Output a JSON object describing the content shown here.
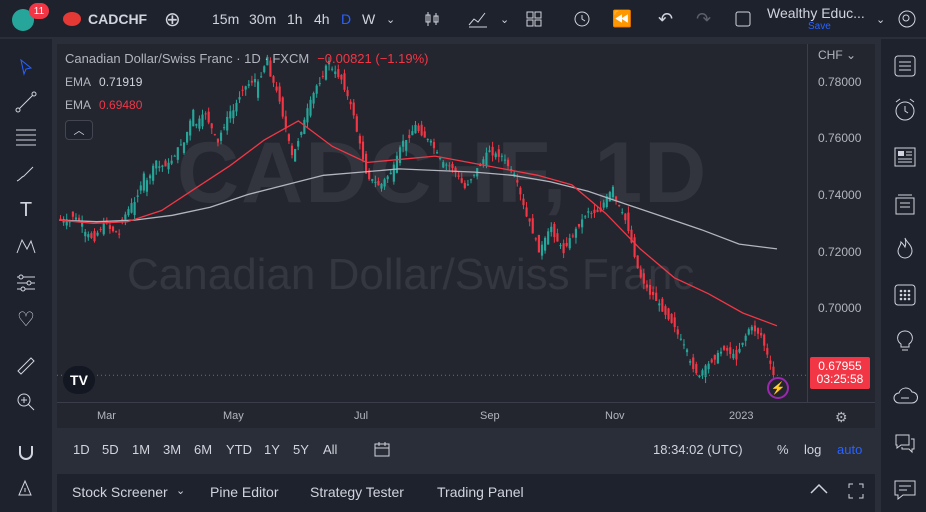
{
  "toolbar": {
    "notification_count": "11",
    "symbol": "CADCHF",
    "intervals": [
      "15m",
      "30m",
      "1h",
      "4h",
      "D",
      "W"
    ],
    "active_interval": "D",
    "account_name": "Wealthy Educ...",
    "save_label": "Save"
  },
  "chart": {
    "header_title": "Canadian Dollar/Swiss Franc · 1D · FXCM",
    "change": "−0.00821 (−1.19%)",
    "ema1_label": "EMA",
    "ema1_value": "0.71919",
    "ema2_label": "EMA",
    "ema2_value": "0.69480",
    "watermark_symbol": "CADCHF, 1D",
    "watermark_name": "Canadian Dollar/Swiss Franc",
    "currency": "CHF",
    "last_price": "0.67955",
    "countdown": "03:25:58",
    "colors": {
      "up": "#26a69a",
      "down": "#f23645",
      "ema1": "#b2b5be",
      "ema2": "#f23645"
    }
  },
  "chart_data": {
    "type": "candlestick",
    "y_ticks": [
      "0.78000",
      "0.76000",
      "0.74000",
      "0.72000",
      "0.70000"
    ],
    "x_ticks": [
      "Mar",
      "May",
      "Jul",
      "Sep",
      "Nov",
      "2023"
    ],
    "ylim": [
      0.6712,
      0.783
    ],
    "grid": false,
    "close_series": [
      [
        0.7285,
        0.7275
      ],
      [
        0.73,
        0.727
      ],
      [
        0.7245,
        0.722
      ],
      [
        0.723,
        0.7275
      ],
      [
        0.726,
        0.7235
      ],
      [
        0.7265,
        0.733
      ],
      [
        0.7305,
        0.742
      ],
      [
        0.738,
        0.7465
      ],
      [
        0.7445,
        0.7455
      ],
      [
        0.745,
        0.752
      ],
      [
        0.749,
        0.762
      ],
      [
        0.757,
        0.7615
      ],
      [
        0.761,
        0.752
      ],
      [
        0.753,
        0.762
      ],
      [
        0.76,
        0.769
      ],
      [
        0.769,
        0.772
      ],
      [
        0.768,
        0.779
      ],
      [
        0.776,
        0.7655
      ],
      [
        0.765,
        0.748
      ],
      [
        0.747,
        0.759
      ],
      [
        0.76,
        0.77
      ],
      [
        0.769,
        0.778
      ],
      [
        0.776,
        0.772
      ],
      [
        0.772,
        0.761
      ],
      [
        0.76,
        0.743
      ],
      [
        0.742,
        0.739
      ],
      [
        0.738,
        0.743
      ],
      [
        0.742,
        0.753
      ],
      [
        0.751,
        0.7575
      ],
      [
        0.757,
        0.753
      ],
      [
        0.754,
        0.747
      ],
      [
        0.746,
        0.7445
      ],
      [
        0.7445,
        0.738
      ],
      [
        0.738,
        0.744
      ],
      [
        0.744,
        0.75
      ],
      [
        0.749,
        0.748
      ],
      [
        0.748,
        0.742
      ],
      [
        0.7425,
        0.729
      ],
      [
        0.73,
        0.7185
      ],
      [
        0.718,
        0.726
      ],
      [
        0.725,
        0.718
      ],
      [
        0.719,
        0.725
      ],
      [
        0.725,
        0.731
      ],
      [
        0.73,
        0.731
      ],
      [
        0.732,
        0.738
      ],
      [
        0.736,
        0.728
      ],
      [
        0.729,
        0.713
      ],
      [
        0.712,
        0.705
      ],
      [
        0.706,
        0.7
      ],
      [
        0.7,
        0.695
      ],
      [
        0.694,
        0.687
      ],
      [
        0.685,
        0.679
      ],
      [
        0.68,
        0.684
      ],
      [
        0.684,
        0.688
      ],
      [
        0.688,
        0.685
      ],
      [
        0.686,
        0.694
      ],
      [
        0.695,
        0.692
      ],
      [
        0.692,
        0.6795
      ]
    ],
    "ema_long": [
      0.728,
      0.7275,
      0.728,
      0.7295,
      0.732,
      0.736,
      0.739,
      0.742,
      0.743,
      0.744,
      0.7435,
      0.743,
      0.742,
      0.74,
      0.737,
      0.733,
      0.729,
      0.725,
      0.7205,
      0.719
    ],
    "ema_short": [
      0.728,
      0.727,
      0.7275,
      0.731,
      0.738,
      0.745,
      0.753,
      0.759,
      0.751,
      0.746,
      0.747,
      0.748,
      0.746,
      0.744,
      0.742,
      0.739,
      0.73,
      0.719,
      0.71,
      0.705,
      0.699,
      0.695
    ]
  },
  "ranges": [
    "1D",
    "5D",
    "1M",
    "3M",
    "6M",
    "YTD",
    "1Y",
    "5Y",
    "All"
  ],
  "clock": "18:34:02 (UTC)",
  "scale_options": {
    "percent": "%",
    "log": "log",
    "auto": "auto"
  },
  "bottom_tabs": [
    "Stock Screener",
    "Pine Editor",
    "Strategy Tester",
    "Trading Panel"
  ]
}
